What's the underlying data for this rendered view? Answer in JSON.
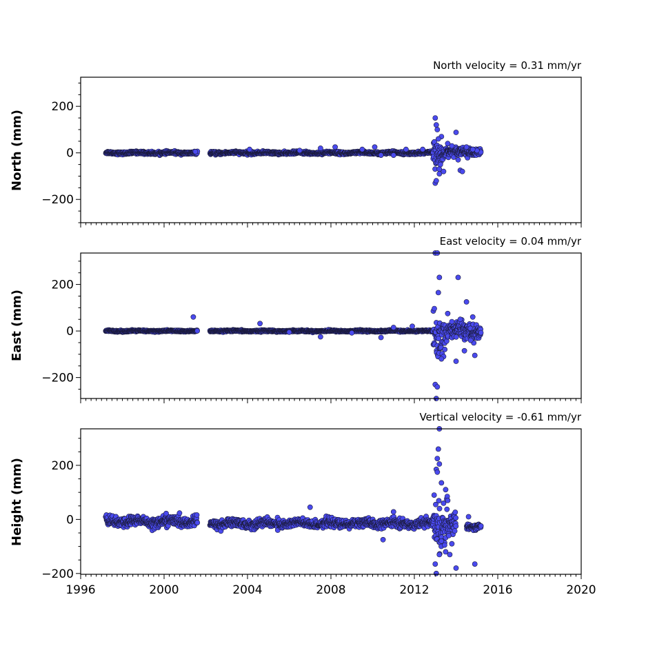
{
  "chart_data": [
    {
      "type": "scatter",
      "title": "North velocity = 0.31 mm/yr",
      "ylabel": "North (mm)",
      "xlim": [
        1996,
        2020
      ],
      "ylim": [
        -300,
        325
      ],
      "yticks": [
        -200,
        0,
        200
      ],
      "xticks": [
        1996,
        2000,
        2004,
        2008,
        2012,
        2016,
        2020
      ],
      "show_xticklabels": false,
      "marker_color": "#4a4aee",
      "edge_color": "#1a1a3a",
      "segments": [
        {
          "start": 1997.2,
          "end": 2001.6,
          "center": 0,
          "noise": 5
        },
        {
          "start": 2002.2,
          "end": 2012.9,
          "center": 0,
          "noise": 5
        },
        {
          "start": 2012.9,
          "end": 2013.4,
          "center": 0,
          "noise": 45
        },
        {
          "start": 2013.4,
          "end": 2015.2,
          "center": 5,
          "noise": 15
        }
      ],
      "outliers": [
        [
          2013.0,
          150
        ],
        [
          2013.05,
          120
        ],
        [
          2013.1,
          100
        ],
        [
          2013.0,
          -130
        ],
        [
          2013.05,
          -120
        ],
        [
          2013.2,
          -90
        ],
        [
          2013.3,
          70
        ],
        [
          2013.4,
          -80
        ],
        [
          2014.0,
          88
        ],
        [
          2014.2,
          -75
        ],
        [
          2014.3,
          -80
        ],
        [
          2004.1,
          15
        ],
        [
          2007.5,
          20
        ],
        [
          2008.2,
          25
        ],
        [
          2009.5,
          15
        ],
        [
          2010.1,
          25
        ],
        [
          2010.4,
          -10
        ],
        [
          2011.0,
          -10
        ],
        [
          2011.6,
          15
        ],
        [
          2012.4,
          15
        ],
        [
          2013.8,
          30
        ],
        [
          2014.5,
          25
        ],
        [
          2015.0,
          10
        ],
        [
          2013.15,
          60
        ],
        [
          2013.25,
          -50
        ],
        [
          2014.1,
          -30
        ],
        [
          2013.6,
          40
        ],
        [
          2014.8,
          15
        ],
        [
          2001.5,
          5
        ],
        [
          2006.5,
          10
        ]
      ]
    },
    {
      "type": "scatter",
      "title": "East velocity = 0.04 mm/yr",
      "ylabel": "East (mm)",
      "xlim": [
        1996,
        2020
      ],
      "ylim": [
        -290,
        335
      ],
      "yticks": [
        -200,
        0,
        200
      ],
      "xticks": [
        1996,
        2000,
        2004,
        2008,
        2012,
        2016,
        2020
      ],
      "show_xticklabels": false,
      "marker_color": "#4a4aee",
      "edge_color": "#1a1a3a",
      "segments": [
        {
          "start": 1997.2,
          "end": 2001.6,
          "center": 0,
          "noise": 3
        },
        {
          "start": 2002.2,
          "end": 2012.9,
          "center": 0,
          "noise": 3
        },
        {
          "start": 2012.9,
          "end": 2013.5,
          "center": 0,
          "noise": 90
        },
        {
          "start": 2013.5,
          "end": 2015.2,
          "center": 0,
          "noise": 30
        }
      ],
      "outliers": [
        [
          2013.0,
          335
        ],
        [
          2013.1,
          335
        ],
        [
          2013.2,
          230
        ],
        [
          2013.15,
          165
        ],
        [
          2013.0,
          -230
        ],
        [
          2013.1,
          -240
        ],
        [
          2013.05,
          -290
        ],
        [
          2014.1,
          230
        ],
        [
          2014.5,
          125
        ],
        [
          2014.8,
          60
        ],
        [
          2014.9,
          -105
        ],
        [
          2014.4,
          -85
        ],
        [
          2014.0,
          -130
        ],
        [
          2013.4,
          -110
        ],
        [
          2001.4,
          60
        ],
        [
          2004.6,
          32
        ],
        [
          2007.5,
          -25
        ],
        [
          2010.4,
          -28
        ],
        [
          2011.0,
          15
        ],
        [
          2011.9,
          20
        ],
        [
          2013.6,
          75
        ],
        [
          2013.3,
          -120
        ],
        [
          2014.2,
          50
        ],
        [
          2014.7,
          -40
        ],
        [
          2013.8,
          40
        ],
        [
          2006.0,
          -5
        ],
        [
          2009.0,
          -8
        ]
      ]
    },
    {
      "type": "scatter",
      "title": "Vertical velocity = -0.61 mm/yr",
      "ylabel": "Height (mm)",
      "xlim": [
        1996,
        2020
      ],
      "ylim": [
        -203,
        335
      ],
      "yticks": [
        -200,
        0,
        200
      ],
      "xticks": [
        1996,
        2000,
        2004,
        2008,
        2012,
        2016,
        2020
      ],
      "show_xticklabels": true,
      "marker_color": "#4a4aee",
      "edge_color": "#1a1a3a",
      "segments": [
        {
          "start": 1997.2,
          "end": 2001.6,
          "center": -8,
          "noise": 16
        },
        {
          "start": 2002.2,
          "end": 2012.9,
          "center": -15,
          "noise": 14
        },
        {
          "start": 2012.9,
          "end": 2013.6,
          "center": -10,
          "noise": 70
        },
        {
          "start": 2013.6,
          "end": 2014.0,
          "center": -20,
          "noise": 30
        },
        {
          "start": 2014.5,
          "end": 2015.2,
          "center": -25,
          "noise": 10
        }
      ],
      "outliers": [
        [
          2013.2,
          335
        ],
        [
          2013.15,
          260
        ],
        [
          2013.1,
          225
        ],
        [
          2013.2,
          205
        ],
        [
          2013.05,
          185
        ],
        [
          2013.1,
          175
        ],
        [
          2013.3,
          135
        ],
        [
          2013.5,
          110
        ],
        [
          2013.6,
          70
        ],
        [
          2013.05,
          -200
        ],
        [
          2013.0,
          -165
        ],
        [
          2013.2,
          -130
        ],
        [
          2013.5,
          -120
        ],
        [
          2013.7,
          -130
        ],
        [
          2013.8,
          -90
        ],
        [
          2014.0,
          -180
        ],
        [
          2014.9,
          -165
        ],
        [
          2014.6,
          10
        ],
        [
          2007.0,
          45
        ],
        [
          2010.5,
          -75
        ],
        [
          2011.0,
          28
        ],
        [
          2000.1,
          22
        ],
        [
          2013.4,
          60
        ],
        [
          2013.65,
          -60
        ],
        [
          2013.3,
          -80
        ],
        [
          2012.95,
          90
        ],
        [
          2013.45,
          -95
        ]
      ]
    }
  ]
}
